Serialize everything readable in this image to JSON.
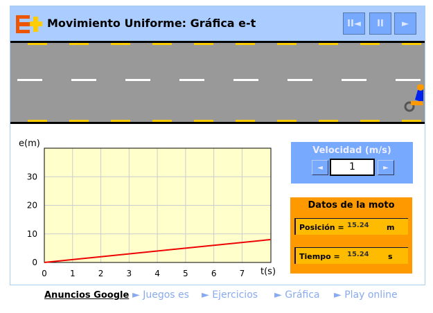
{
  "header": {
    "title": "Movimiento Uniforme: Gráfica e-t",
    "logo": "E+",
    "controls": [
      "reset-icon",
      "pause-icon",
      "play-icon"
    ],
    "control_glyphs": [
      "II◄",
      "II",
      "►"
    ]
  },
  "chart_data": {
    "type": "line",
    "xlabel": "t(s)",
    "ylabel": "e(m)",
    "xlim": [
      0,
      8
    ],
    "ylim": [
      0,
      40
    ],
    "x_ticks": [
      "0",
      "1",
      "2",
      "3",
      "4",
      "5",
      "6",
      "7"
    ],
    "y_ticks": [
      "0",
      "10",
      "20",
      "30"
    ],
    "grid": true,
    "series": [
      {
        "x": [
          0,
          8
        ],
        "y": [
          0,
          8
        ],
        "color": "#ee0000"
      }
    ]
  },
  "velocidad": {
    "label": "Velocidad (m/s)",
    "value": "1",
    "dec": "◄",
    "inc": "►"
  },
  "datos": {
    "title": "Datos de la moto",
    "posicion_label": "Posición =",
    "posicion": "15.24",
    "posicion_unit": "m",
    "tiempo_label": "Tiempo =",
    "tiempo": "15.24",
    "tiempo_unit": "s"
  },
  "footer": {
    "ads": "Anuncios Google",
    "links": [
      "► Juegos es",
      "► Ejercicios",
      "► Gráfica",
      "► Play online"
    ]
  }
}
